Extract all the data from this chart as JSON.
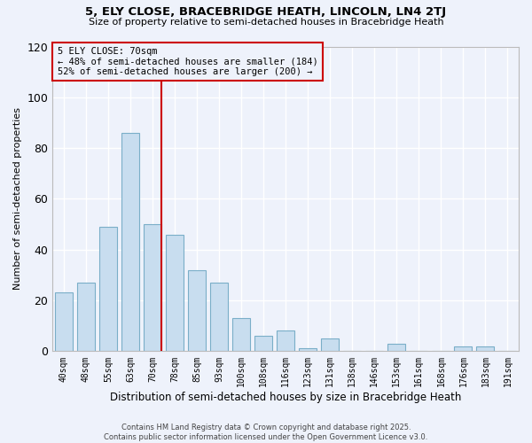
{
  "title": "5, ELY CLOSE, BRACEBRIDGE HEATH, LINCOLN, LN4 2TJ",
  "subtitle": "Size of property relative to semi-detached houses in Bracebridge Heath",
  "xlabel": "Distribution of semi-detached houses by size in Bracebridge Heath",
  "ylabel": "Number of semi-detached properties",
  "categories": [
    "40sqm",
    "48sqm",
    "55sqm",
    "63sqm",
    "70sqm",
    "78sqm",
    "85sqm",
    "93sqm",
    "100sqm",
    "108sqm",
    "116sqm",
    "123sqm",
    "131sqm",
    "138sqm",
    "146sqm",
    "153sqm",
    "161sqm",
    "168sqm",
    "176sqm",
    "183sqm",
    "191sqm"
  ],
  "values": [
    23,
    27,
    49,
    86,
    50,
    46,
    32,
    27,
    13,
    6,
    8,
    1,
    5,
    0,
    0,
    3,
    0,
    0,
    2,
    2,
    0
  ],
  "bar_color": "#c8ddef",
  "bar_edge_color": "#7aaec8",
  "vline_x_index": 4,
  "vline_color": "#cc0000",
  "annotation_title": "5 ELY CLOSE: 70sqm",
  "annotation_line1": "← 48% of semi-detached houses are smaller (184)",
  "annotation_line2": "52% of semi-detached houses are larger (200) →",
  "ylim": [
    0,
    120
  ],
  "yticks": [
    0,
    20,
    40,
    60,
    80,
    100,
    120
  ],
  "bg_color": "#eef2fb",
  "grid_color": "#ffffff",
  "footer1": "Contains HM Land Registry data © Crown copyright and database right 2025.",
  "footer2": "Contains public sector information licensed under the Open Government Licence v3.0."
}
